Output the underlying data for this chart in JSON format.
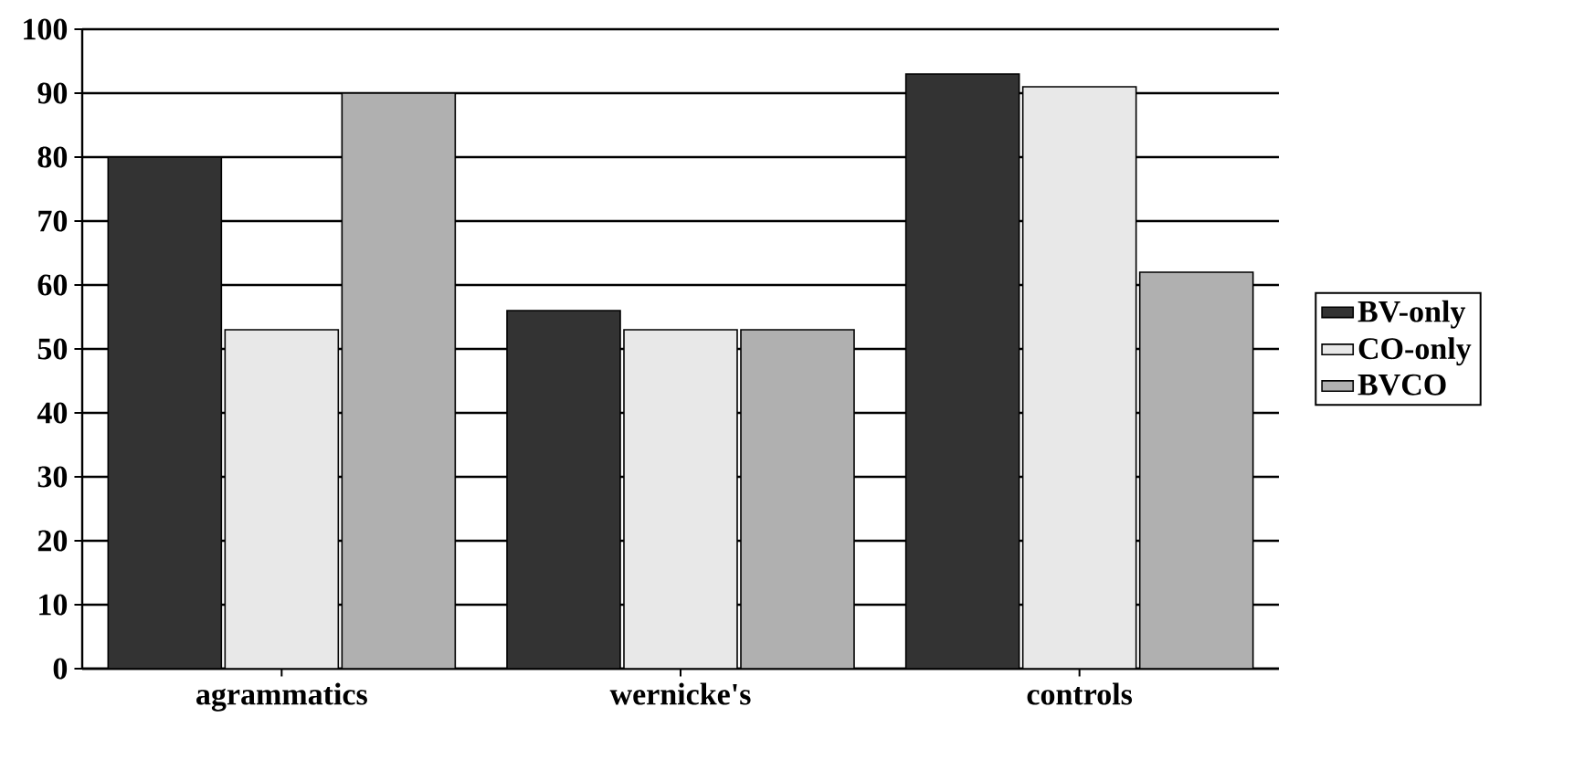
{
  "chart_data": {
    "type": "bar",
    "categories": [
      "agrammatics",
      "wernicke's",
      "controls"
    ],
    "series": [
      {
        "name": "BV-only",
        "color": "#333333",
        "values": [
          80,
          56,
          93
        ]
      },
      {
        "name": "CO-only",
        "color": "#e8e8e8",
        "values": [
          53,
          53,
          91
        ]
      },
      {
        "name": "BVCO",
        "color": "#b0b0b0",
        "values": [
          90,
          53,
          62
        ]
      }
    ],
    "ylim": [
      0,
      100
    ],
    "yticks": [
      0,
      10,
      20,
      30,
      40,
      50,
      60,
      70,
      80,
      90,
      100
    ],
    "grid": "y",
    "legend": "right"
  }
}
